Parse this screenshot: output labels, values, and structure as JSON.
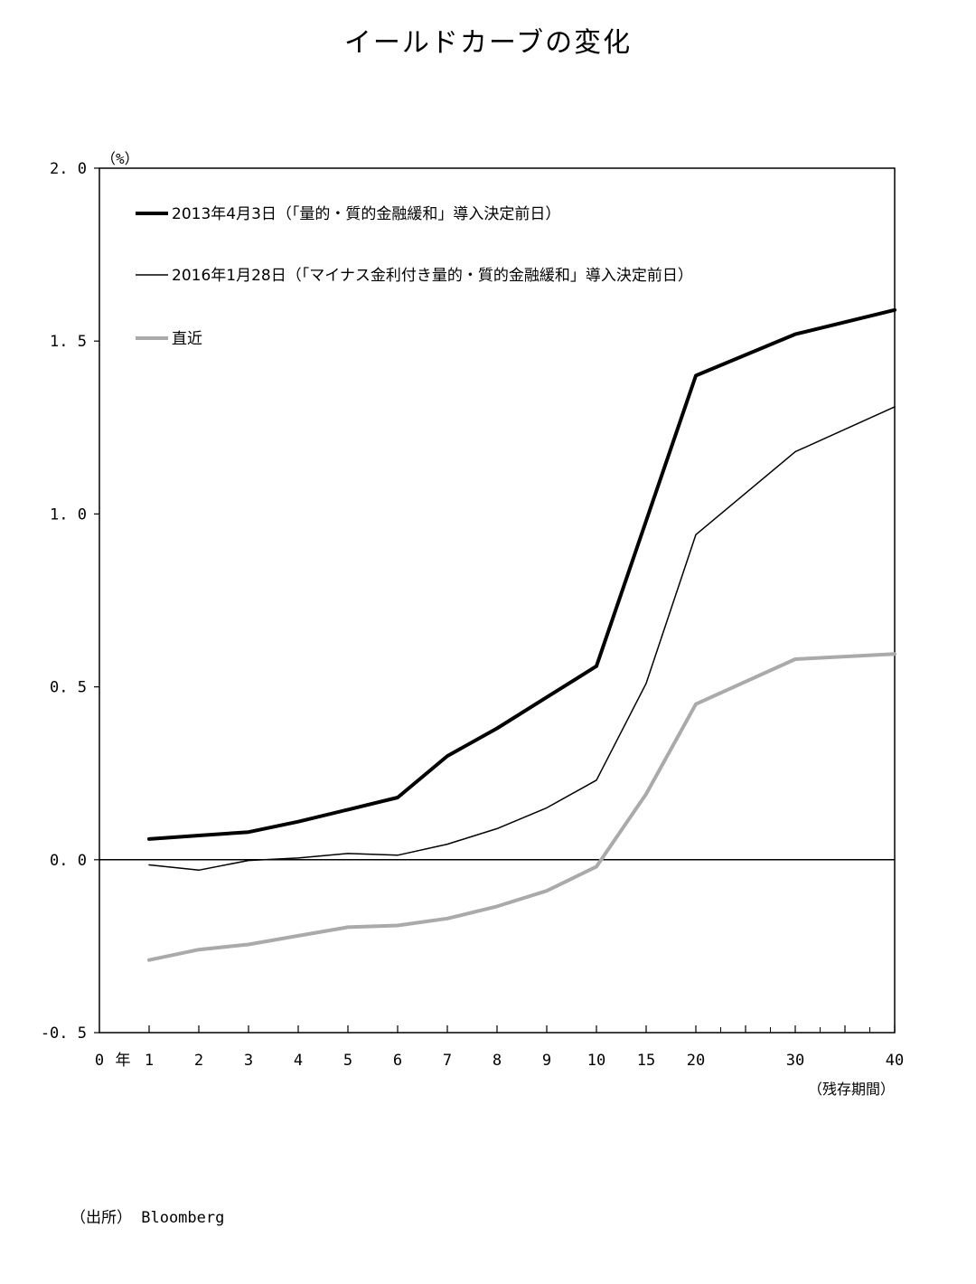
{
  "corner_mark": "",
  "title": "イールドカーブの変化",
  "source": "（出所） Bloomberg",
  "chart_data": {
    "type": "line",
    "title": "イールドカーブの変化",
    "ylabel": "（%）",
    "xlabel": "（残存期間）",
    "x_unit_label": "年",
    "ylim": [
      -0.5,
      2.0
    ],
    "yticks": [
      "-0.5",
      "0.0",
      "0.5",
      "1.0",
      "1.5",
      "2.0"
    ],
    "x_origin_label": "0",
    "categories": [
      "1",
      "2",
      "3",
      "4",
      "5",
      "6",
      "7",
      "8",
      "9",
      "10",
      "15",
      "20",
      "30",
      "40"
    ],
    "series": [
      {
        "name": "2013年4月3日（「量的・質的金融緩和」導入決定前日）",
        "color": "#000000",
        "style": "thick",
        "x": [
          1,
          2,
          3,
          4,
          5,
          6,
          7,
          8,
          9,
          10,
          15,
          20,
          30,
          40
        ],
        "values": [
          0.06,
          0.07,
          0.08,
          0.11,
          0.145,
          0.18,
          0.3,
          0.38,
          0.47,
          0.56,
          0.98,
          1.4,
          1.52,
          1.59
        ]
      },
      {
        "name": "2016年1月28日（「マイナス金利付き量的・質的金融緩和」導入決定前日）",
        "color": "#000000",
        "style": "thin",
        "x": [
          1,
          2,
          3,
          4,
          5,
          6,
          7,
          8,
          9,
          10,
          15,
          20,
          30,
          40
        ],
        "values": [
          -0.015,
          -0.03,
          -0.002,
          0.005,
          0.018,
          0.013,
          0.045,
          0.09,
          0.15,
          0.23,
          0.51,
          0.94,
          1.18,
          1.31
        ]
      },
      {
        "name": "直近",
        "color": "#aaaaaa",
        "style": "thick",
        "x": [
          1,
          2,
          3,
          4,
          5,
          6,
          7,
          8,
          9,
          10,
          15,
          20,
          30,
          40
        ],
        "values": [
          -0.29,
          -0.26,
          -0.245,
          -0.22,
          -0.195,
          -0.19,
          -0.17,
          -0.135,
          -0.09,
          -0.02,
          0.19,
          0.45,
          0.58,
          0.595
        ]
      }
    ],
    "legend": "top-left",
    "grid": false,
    "zero_line": true
  }
}
